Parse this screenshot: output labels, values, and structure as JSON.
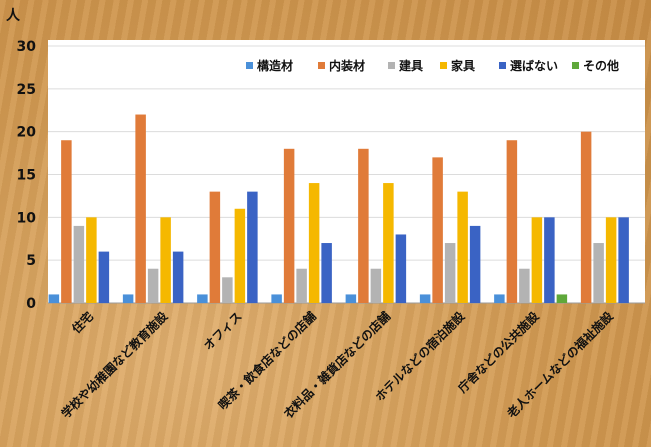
{
  "chart_data": {
    "type": "bar",
    "ylabel": "人",
    "ylim": [
      0,
      30
    ],
    "yticks": [
      0,
      5,
      10,
      15,
      20,
      25,
      30
    ],
    "grid": true,
    "legend_position": "top-right",
    "categories": [
      "住宅",
      "学校や幼稚園など教育施設",
      "オフィス",
      "喫茶・飲食店などの店舗",
      "衣料品・雑貨店などの店舗",
      "ホテルなどの宿泊施設",
      "庁舎などの公共施設",
      "老人ホームなどの福祉施設"
    ],
    "series": [
      {
        "name": "構造材",
        "color": "#4a90d9",
        "values": [
          1,
          1,
          1,
          1,
          1,
          1,
          1,
          0
        ]
      },
      {
        "name": "内装材",
        "color": "#e07b39",
        "values": [
          19,
          22,
          13,
          18,
          18,
          17,
          19,
          20
        ]
      },
      {
        "name": "建具",
        "color": "#b3b3b3",
        "values": [
          9,
          4,
          3,
          4,
          4,
          7,
          4,
          7
        ]
      },
      {
        "name": "家具",
        "color": "#f5b800",
        "values": [
          10,
          10,
          11,
          14,
          14,
          13,
          10,
          10
        ]
      },
      {
        "name": "選ばない",
        "color": "#3a63c4",
        "values": [
          6,
          6,
          13,
          7,
          8,
          9,
          10,
          10
        ]
      },
      {
        "name": "その他",
        "color": "#5fa83a",
        "values": [
          0,
          0,
          0,
          0,
          0,
          0,
          1,
          0
        ]
      }
    ]
  }
}
